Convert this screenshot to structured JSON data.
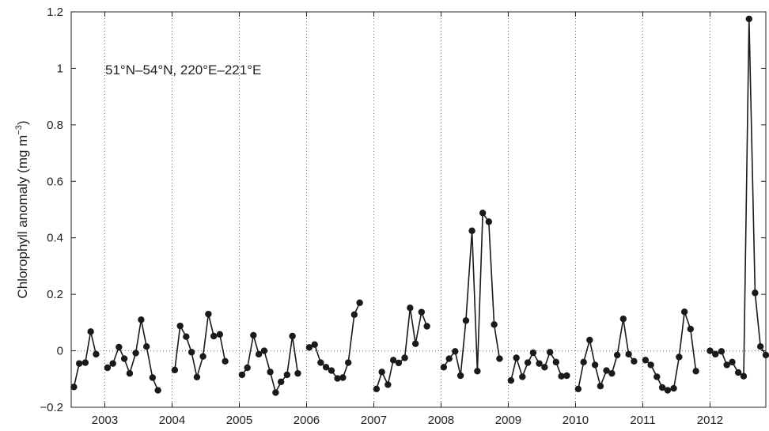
{
  "chart_data": {
    "type": "line",
    "annotation": "51°N–54°N, 220°E–221°E",
    "ylabel": "Chlorophyll anomaly (mg m",
    "ylabel_sup": "−3",
    "ylabel_close": ")",
    "xlim": [
      2002.5,
      2012.83
    ],
    "ylim": [
      -0.2,
      1.2
    ],
    "x_ticks": [
      2003,
      2004,
      2005,
      2006,
      2007,
      2008,
      2009,
      2010,
      2011,
      2012
    ],
    "x_tick_labels": [
      "2003",
      "2004",
      "2005",
      "2006",
      "2007",
      "2008",
      "2009",
      "2010",
      "2011",
      "2012"
    ],
    "y_ticks": [
      -0.2,
      0,
      0.2,
      0.4,
      0.6,
      0.8,
      1.0,
      1.2
    ],
    "y_tick_labels": [
      "−0.2",
      "0",
      "0.2",
      "0.4",
      "0.6",
      "0.8",
      "1",
      "1.2"
    ],
    "grid": "vertical dotted at years; dotted zero line",
    "colors": {
      "line": "#1a1a1a",
      "marker": "#1a1a1a",
      "grid": "#666666"
    },
    "segments": [
      {
        "x": [
          2002.54,
          2002.62,
          2002.71,
          2002.79,
          2002.87
        ],
        "y": [
          -0.128,
          -0.045,
          -0.042,
          0.068,
          -0.012
        ]
      },
      {
        "x": [
          2003.04,
          2003.12,
          2003.21,
          2003.29,
          2003.37,
          2003.46,
          2003.54,
          2003.62,
          2003.71,
          2003.79
        ],
        "y": [
          -0.06,
          -0.045,
          0.013,
          -0.028,
          -0.08,
          -0.008,
          0.11,
          0.015,
          -0.095,
          -0.14
        ]
      },
      {
        "x": [
          2004.04,
          2004.12,
          2004.21,
          2004.29,
          2004.37,
          2004.46,
          2004.54,
          2004.62,
          2004.71,
          2004.79
        ],
        "y": [
          -0.068,
          0.088,
          0.05,
          -0.005,
          -0.093,
          -0.02,
          0.13,
          0.052,
          0.058,
          -0.037
        ]
      },
      {
        "x": [
          2005.04,
          2005.12,
          2005.21,
          2005.29,
          2005.37,
          2005.46,
          2005.54,
          2005.62,
          2005.71,
          2005.79,
          2005.87
        ],
        "y": [
          -0.085,
          -0.06,
          0.055,
          -0.012,
          0.0,
          -0.075,
          -0.148,
          -0.11,
          -0.085,
          0.052,
          -0.08
        ]
      },
      {
        "x": [
          2006.04,
          2006.12,
          2006.21,
          2006.29,
          2006.37,
          2006.46,
          2006.54,
          2006.62,
          2006.71,
          2006.79
        ],
        "y": [
          0.012,
          0.022,
          -0.042,
          -0.058,
          -0.07,
          -0.098,
          -0.095,
          -0.042,
          0.128,
          0.17
        ]
      },
      {
        "x": [
          2007.04,
          2007.12,
          2007.21,
          2007.29,
          2007.37,
          2007.46,
          2007.54,
          2007.62,
          2007.71,
          2007.79
        ],
        "y": [
          -0.135,
          -0.075,
          -0.12,
          -0.033,
          -0.043,
          -0.025,
          0.152,
          0.025,
          0.137,
          0.087
        ]
      },
      {
        "x": [
          2008.04,
          2008.12,
          2008.21,
          2008.29,
          2008.37,
          2008.46,
          2008.54,
          2008.62,
          2008.71,
          2008.79,
          2008.87
        ],
        "y": [
          -0.058,
          -0.028,
          -0.002,
          -0.088,
          0.107,
          0.425,
          -0.072,
          0.488,
          0.457,
          0.093,
          -0.028
        ]
      },
      {
        "x": [
          2009.04,
          2009.12,
          2009.21,
          2009.29,
          2009.37,
          2009.46,
          2009.54,
          2009.62,
          2009.71,
          2009.79,
          2009.87
        ],
        "y": [
          -0.105,
          -0.025,
          -0.092,
          -0.042,
          -0.007,
          -0.045,
          -0.058,
          -0.005,
          -0.04,
          -0.09,
          -0.088
        ]
      },
      {
        "x": [
          2010.04,
          2010.12,
          2010.21,
          2010.29,
          2010.37,
          2010.46,
          2010.54,
          2010.62,
          2010.71,
          2010.79,
          2010.87
        ],
        "y": [
          -0.135,
          -0.04,
          0.038,
          -0.05,
          -0.125,
          -0.07,
          -0.08,
          -0.015,
          0.113,
          -0.012,
          -0.037
        ]
      },
      {
        "x": [
          2011.04,
          2011.12,
          2011.21,
          2011.29,
          2011.37,
          2011.46,
          2011.54,
          2011.62,
          2011.71,
          2011.79
        ],
        "y": [
          -0.033,
          -0.05,
          -0.092,
          -0.13,
          -0.14,
          -0.133,
          -0.022,
          0.138,
          0.077,
          -0.072
        ]
      },
      {
        "x": [
          2012.0,
          2012.08,
          2012.17,
          2012.25,
          2012.33,
          2012.42,
          2012.5,
          2012.58,
          2012.67,
          2012.75,
          2012.83
        ],
        "y": [
          0.0,
          -0.012,
          -0.002,
          -0.05,
          -0.04,
          -0.077,
          -0.09,
          1.175,
          0.205,
          0.015,
          -0.015
        ]
      }
    ]
  }
}
